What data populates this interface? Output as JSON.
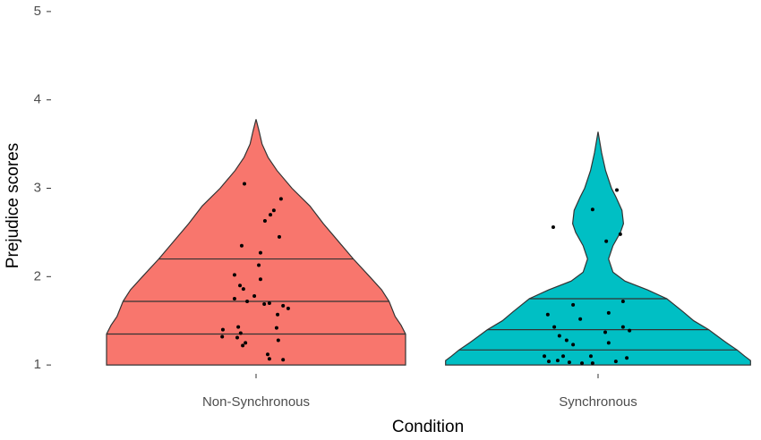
{
  "chart_data": {
    "type": "violin",
    "x_label": "Condition",
    "y_label": "Prejudice scores",
    "categories": [
      "Non-Synchronous",
      "Synchronous"
    ],
    "ylim": [
      0.9,
      5.1
    ],
    "yticks": [
      1,
      2,
      3,
      4,
      5
    ],
    "grid": false,
    "series": [
      {
        "name": "Non-Synchronous",
        "color": "#F8766D",
        "profile_y": [
          1.0,
          1.2,
          1.35,
          1.45,
          1.55,
          1.72,
          1.85,
          2.0,
          2.2,
          2.4,
          2.6,
          2.8,
          3.0,
          3.2,
          3.35,
          3.5,
          3.65,
          3.78
        ],
        "profile_width": [
          1.0,
          1.0,
          1.0,
          0.97,
          0.93,
          0.89,
          0.84,
          0.76,
          0.65,
          0.55,
          0.45,
          0.36,
          0.24,
          0.14,
          0.08,
          0.04,
          0.02,
          0
        ],
        "quantiles": [
          1.35,
          1.72,
          2.2
        ],
        "points_x": [
          0.966,
          1.073,
          1.052,
          1.042,
          1.026,
          1.068,
          0.958,
          1.013,
          1.008,
          0.937,
          1.013,
          0.953,
          0.963,
          0.995,
          0.937,
          1.024,
          1.039,
          0.974,
          1.079,
          1.063,
          1.094,
          0.948,
          0.903,
          0.955,
          1.06,
          0.901,
          0.945,
          0.969,
          0.961,
          1.065,
          1.034,
          1.039,
          1.079
        ],
        "points_y": [
          3.05,
          2.88,
          2.75,
          2.7,
          2.63,
          2.45,
          2.35,
          2.27,
          2.13,
          2.02,
          1.97,
          1.9,
          1.86,
          1.78,
          1.75,
          1.69,
          1.7,
          1.72,
          1.67,
          1.57,
          1.64,
          1.43,
          1.4,
          1.36,
          1.42,
          1.32,
          1.31,
          1.25,
          1.22,
          1.28,
          1.12,
          1.07,
          1.06
        ]
      },
      {
        "name": "Synchronous",
        "color": "#00BFC4",
        "profile_y": [
          1.0,
          1.05,
          1.1,
          1.17,
          1.25,
          1.3,
          1.4,
          1.5,
          1.6,
          1.75,
          1.85,
          1.95,
          2.05,
          2.2,
          2.35,
          2.5,
          2.6,
          2.75,
          2.9,
          3.0,
          3.2,
          3.4,
          3.64
        ],
        "profile_width": [
          1.02,
          1.02,
          0.98,
          0.93,
          0.86,
          0.82,
          0.74,
          0.64,
          0.57,
          0.46,
          0.33,
          0.18,
          0.1,
          0.07,
          0.1,
          0.15,
          0.17,
          0.16,
          0.12,
          0.09,
          0.05,
          0.024,
          0
        ],
        "quantiles": [
          1.17,
          1.4,
          1.75
        ],
        "points_x": [
          2.055,
          1.984,
          1.869,
          2.065,
          2.024,
          2.073,
          1.927,
          2.031,
          1.853,
          1.948,
          1.872,
          2.073,
          2.092,
          2.021,
          1.887,
          1.908,
          2.031,
          1.927,
          1.843,
          1.898,
          1.979,
          1.882,
          1.916,
          2.084,
          2.052,
          1.984,
          1.953,
          1.856
        ],
        "points_y": [
          2.98,
          2.76,
          2.56,
          2.48,
          2.4,
          1.72,
          1.68,
          1.59,
          1.57,
          1.52,
          1.43,
          1.43,
          1.39,
          1.37,
          1.33,
          1.28,
          1.25,
          1.23,
          1.1,
          1.1,
          1.1,
          1.05,
          1.03,
          1.08,
          1.04,
          1.02,
          1.02,
          1.04
        ]
      }
    ]
  }
}
